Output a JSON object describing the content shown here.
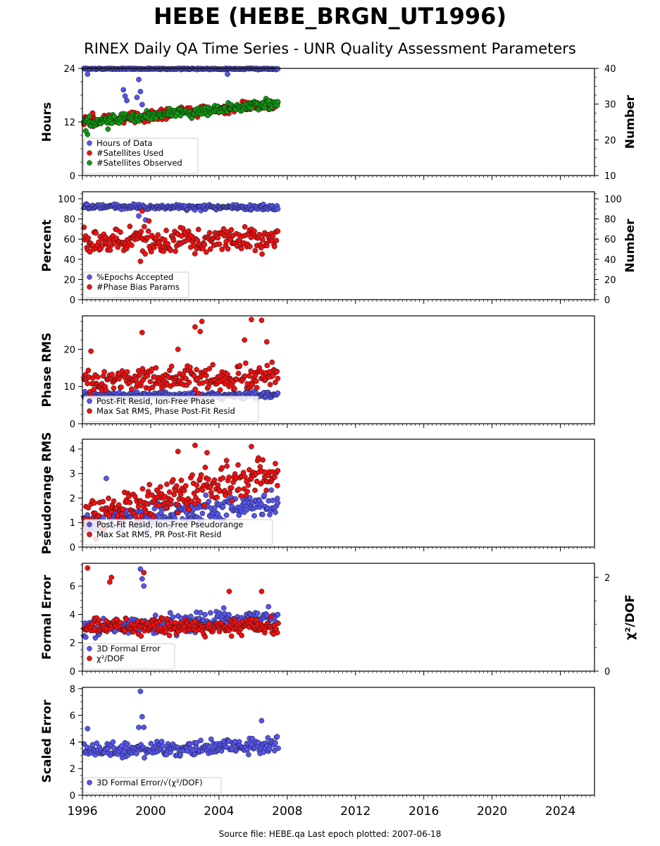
{
  "title": "HEBE (HEBE_BRGN_UT1996)",
  "subtitle": "RINEX Daily QA Time Series - UNR Quality Assessment Parameters",
  "footer": "Source file: HEBE.qa Last epoch plotted: 2007-06-18",
  "colors": {
    "blue": "#5555ee",
    "red": "#ee1111",
    "green": "#119911"
  },
  "chart_data": [
    {
      "type": "scatter",
      "ylabel": "Hours",
      "ylabel_right": "Number",
      "ylim": [
        0,
        24
      ],
      "yticks": [
        0,
        12,
        24
      ],
      "ylim_right": [
        10,
        40
      ],
      "yticks_right": [
        10,
        20,
        30,
        40
      ],
      "xlim": [
        1996,
        2026
      ],
      "xticks": [
        1996,
        2000,
        2004,
        2008,
        2012,
        2016,
        2020,
        2024
      ],
      "legend": "lower-left",
      "series": [
        {
          "name": "Hours of Data",
          "color": "blue",
          "axis": "left",
          "pattern": {
            "x_start": 1996.1,
            "x_end": 2007.46,
            "base": 23.9,
            "trend": 0,
            "noise": 0.1,
            "outliers": [
              [
                1999.2,
                17.5
              ],
              [
                1999.4,
                18.8
              ],
              [
                1999.5,
                15.9
              ],
              [
                1998.4,
                19.2
              ],
              [
                1998.6,
                16.8
              ],
              [
                2004.5,
                22.7
              ],
              [
                1996.3,
                22.7
              ],
              [
                1999.3,
                21.5
              ],
              [
                1998.5,
                17.8
              ]
            ]
          }
        },
        {
          "name": "#Satellites Used",
          "color": "red",
          "axis": "right",
          "pattern": {
            "x_start": 1996.1,
            "x_end": 2007.46,
            "base": 25,
            "trend": 0.45,
            "noise": 1.0,
            "outliers": [
              [
                1996.6,
                27.5
              ],
              [
                1996.3,
                26
              ]
            ]
          }
        },
        {
          "name": "#Satellites Observed",
          "color": "green",
          "axis": "right",
          "pattern": {
            "x_start": 1996.1,
            "x_end": 2007.46,
            "base": 25,
            "trend": 0.45,
            "noise": 1.0,
            "outliers": [
              [
                1996.3,
                21.5
              ],
              [
                1997.5,
                23
              ],
              [
                1996.2,
                22.5
              ]
            ]
          }
        }
      ]
    },
    {
      "type": "scatter",
      "ylabel": "Percent",
      "ylabel_right": "Number",
      "ylim": [
        0,
        107
      ],
      "yticks": [
        0,
        20,
        40,
        60,
        80,
        100
      ],
      "ylim_right": [
        0,
        107
      ],
      "yticks_right": [
        0,
        20,
        40,
        60,
        80,
        100
      ],
      "xlim": [
        1996,
        2026
      ],
      "xticks": [
        1996,
        2000,
        2004,
        2008,
        2012,
        2016,
        2020,
        2024
      ],
      "legend": "lower-left",
      "series": [
        {
          "name": "%Epochs Accepted",
          "color": "blue",
          "axis": "left",
          "pattern": {
            "x_start": 1996.1,
            "x_end": 2007.46,
            "base": 92,
            "trend": -0.05,
            "noise": 1.8,
            "outliers": [
              [
                1999.7,
                79
              ],
              [
                1999.3,
                83
              ]
            ]
          }
        },
        {
          "name": "#Phase Bias Params",
          "color": "red",
          "axis": "right",
          "pattern": {
            "x_start": 1996.1,
            "x_end": 2007.46,
            "base": 57,
            "trend": 0.4,
            "noise": 8,
            "outliers": [
              [
                1999.4,
                38
              ],
              [
                1999.5,
                88
              ],
              [
                1999.9,
                78
              ]
            ]
          }
        }
      ]
    },
    {
      "type": "scatter",
      "ylabel": "Phase RMS",
      "ylim": [
        0,
        29
      ],
      "yticks": [
        0,
        10,
        20
      ],
      "xlim": [
        1996,
        2026
      ],
      "xticks": [
        1996,
        2000,
        2004,
        2008,
        2012,
        2016,
        2020,
        2024
      ],
      "legend": "lower-left",
      "series": [
        {
          "name": "Post-Fit Resid, Ion-Free Phase",
          "color": "blue",
          "axis": "left",
          "pattern": {
            "x_start": 1996.1,
            "x_end": 2007.46,
            "base": 7.6,
            "trend": 0,
            "noise": 0.6,
            "outliers": []
          }
        },
        {
          "name": "Max Sat RMS, Phase Post-Fit Resid",
          "color": "red",
          "axis": "left",
          "pattern": {
            "x_start": 1996.1,
            "x_end": 2007.46,
            "base": 11.5,
            "trend": 0.1,
            "noise": 2.2,
            "outliers": [
              [
                1999.5,
                24.5
              ],
              [
                2002.6,
                26
              ],
              [
                2003.0,
                27.5
              ],
              [
                2002.9,
                24.8
              ],
              [
                2005.9,
                28
              ],
              [
                2006.5,
                27.8
              ],
              [
                2006.8,
                22
              ],
              [
                1996.5,
                19.5
              ],
              [
                2001.6,
                20
              ],
              [
                2005.5,
                22.5
              ]
            ]
          }
        }
      ]
    },
    {
      "type": "scatter",
      "ylabel": "Pseudorange RMS",
      "ylim": [
        0,
        4.4
      ],
      "yticks": [
        0,
        1,
        2,
        3,
        4
      ],
      "xlim": [
        1996,
        2026
      ],
      "xticks": [
        1996,
        2000,
        2004,
        2008,
        2012,
        2016,
        2020,
        2024
      ],
      "legend": "lower-left",
      "series": [
        {
          "name": "Post-Fit Resid, Ion-Free Pseudorange",
          "color": "blue",
          "axis": "left",
          "pattern": {
            "x_start": 1996.1,
            "x_end": 2007.46,
            "base": 1.0,
            "trend": 0.07,
            "noise": 0.35,
            "outliers": [
              [
                1997.4,
                2.8
              ]
            ]
          }
        },
        {
          "name": "Max Sat RMS, PR Post-Fit Resid",
          "color": "red",
          "axis": "left",
          "pattern": {
            "x_start": 1996.1,
            "x_end": 2007.46,
            "base": 1.2,
            "trend": 0.16,
            "noise": 0.55,
            "outliers": [
              [
                2002.6,
                4.15
              ],
              [
                2005.9,
                4.1
              ],
              [
                2003.3,
                3.85
              ],
              [
                2001.6,
                3.9
              ]
            ]
          }
        }
      ]
    },
    {
      "type": "scatter",
      "ylabel": "Formal Error",
      "ylabel_right": "χ²/DOF",
      "ylim": [
        0,
        7.6
      ],
      "yticks": [
        0,
        2,
        4,
        6
      ],
      "ylim_right": [
        0,
        2.3
      ],
      "yticks_right": [
        0,
        2
      ],
      "xlim": [
        1996,
        2026
      ],
      "xticks": [
        1996,
        2000,
        2004,
        2008,
        2012,
        2016,
        2020,
        2024
      ],
      "legend": "lower-left",
      "series": [
        {
          "name": "3D Formal Error",
          "color": "blue",
          "axis": "left",
          "pattern": {
            "x_start": 1996.1,
            "x_end": 2007.46,
            "base": 3.0,
            "trend": 0.07,
            "noise": 0.45,
            "outliers": [
              [
                1999.4,
                7.2
              ],
              [
                1999.5,
                6.5
              ],
              [
                1999.6,
                6.0
              ]
            ]
          }
        },
        {
          "name": "χ²/DOF",
          "color": "red",
          "axis": "right",
          "pattern": {
            "x_start": 1996.1,
            "x_end": 2007.46,
            "base": 0.95,
            "trend": 0,
            "noise": 0.12,
            "outliers": [
              [
                1996.3,
                2.2
              ],
              [
                1997.7,
                2.0
              ],
              [
                1997.6,
                1.9
              ],
              [
                1999.6,
                2.1
              ],
              [
                2004.6,
                1.7
              ],
              [
                2006.5,
                1.7
              ]
            ]
          }
        }
      ]
    },
    {
      "type": "scatter",
      "ylabel": "Scaled Error",
      "ylim": [
        0,
        8.1
      ],
      "yticks": [
        0,
        2,
        4,
        6,
        8
      ],
      "xlim": [
        1996,
        2026
      ],
      "xticks": [
        1996,
        2000,
        2004,
        2008,
        2012,
        2016,
        2020,
        2024
      ],
      "legend": "lower-left",
      "series": [
        {
          "name": "3D Formal Error/√(χ²/DOF)",
          "color": "blue",
          "axis": "left",
          "pattern": {
            "x_start": 1996.1,
            "x_end": 2007.46,
            "base": 3.3,
            "trend": 0.04,
            "noise": 0.4,
            "outliers": [
              [
                1999.4,
                7.8
              ],
              [
                1999.5,
                5.9
              ],
              [
                1999.3,
                5.1
              ],
              [
                1999.6,
                5.1
              ],
              [
                1996.3,
                5.0
              ],
              [
                2006.5,
                5.6
              ]
            ]
          }
        }
      ]
    }
  ]
}
